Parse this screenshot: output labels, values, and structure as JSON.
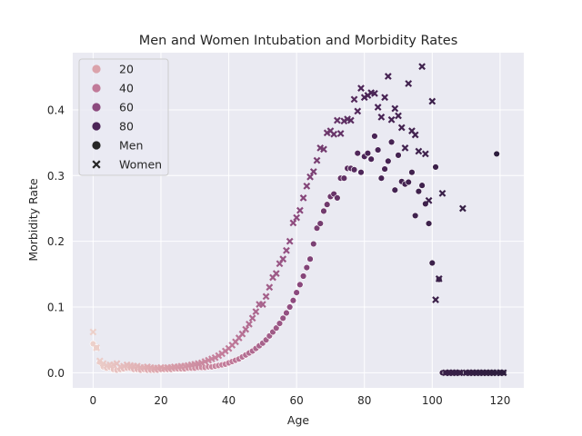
{
  "chart_data": {
    "type": "scatter",
    "title": "Men and Women Intubation and Morbidity Rates",
    "xlabel": "Age",
    "ylabel": "Morbidity Rate",
    "xlim": [
      -6,
      127
    ],
    "ylim": [
      -0.023,
      0.487
    ],
    "xticks": [
      0,
      20,
      40,
      60,
      80,
      100,
      120
    ],
    "yticks": [
      0.0,
      0.1,
      0.2,
      0.3,
      0.4
    ],
    "grid": true,
    "background": "#eaeaf2",
    "legend": {
      "placement": "top-left",
      "hue_entries": [
        {
          "label": "20",
          "color": "#dba3ab"
        },
        {
          "label": "40",
          "color": "#c17a99"
        },
        {
          "label": "60",
          "color": "#8c4a7e"
        },
        {
          "label": "80",
          "color": "#4b2457"
        }
      ],
      "style_entries": [
        {
          "label": "Men",
          "marker": "circle"
        },
        {
          "label": "Women",
          "marker": "x"
        }
      ]
    },
    "series": [
      {
        "style": "Men",
        "marker": "circle",
        "x": [
          0,
          1,
          2,
          3,
          4,
          5,
          6,
          7,
          8,
          9,
          10,
          11,
          12,
          13,
          14,
          15,
          16,
          17,
          18,
          19,
          20,
          21,
          22,
          23,
          24,
          25,
          26,
          27,
          28,
          29,
          30,
          31,
          32,
          33,
          34,
          35,
          36,
          37,
          38,
          39,
          40,
          41,
          42,
          43,
          44,
          45,
          46,
          47,
          48,
          49,
          50,
          51,
          52,
          53,
          54,
          55,
          56,
          57,
          58,
          59,
          60,
          61,
          62,
          63,
          64,
          65,
          66,
          67,
          68,
          69,
          70,
          71,
          72,
          73,
          74,
          75,
          76,
          77,
          78,
          79,
          80,
          81,
          82,
          83,
          84,
          85,
          86,
          87,
          88,
          89,
          90,
          91,
          92,
          93,
          94,
          95,
          96,
          97,
          98,
          99,
          100,
          101,
          102,
          103,
          104,
          105,
          106,
          107,
          108,
          109,
          110,
          111,
          112,
          113,
          114,
          115,
          116,
          117,
          118,
          119,
          120,
          121
        ],
        "y": [
          0.044,
          0.038,
          0.016,
          0.009,
          0.007,
          0.008,
          0.005,
          0.004,
          0.005,
          0.006,
          0.007,
          0.007,
          0.005,
          0.005,
          0.004,
          0.005,
          0.004,
          0.004,
          0.004,
          0.004,
          0.005,
          0.005,
          0.005,
          0.005,
          0.006,
          0.006,
          0.006,
          0.006,
          0.007,
          0.007,
          0.007,
          0.008,
          0.008,
          0.008,
          0.009,
          0.009,
          0.01,
          0.011,
          0.012,
          0.013,
          0.015,
          0.017,
          0.019,
          0.021,
          0.024,
          0.027,
          0.03,
          0.033,
          0.037,
          0.041,
          0.045,
          0.05,
          0.056,
          0.062,
          0.068,
          0.075,
          0.083,
          0.091,
          0.1,
          0.11,
          0.122,
          0.134,
          0.147,
          0.16,
          0.173,
          0.196,
          0.22,
          0.227,
          0.246,
          0.256,
          0.268,
          0.272,
          0.266,
          0.296,
          0.296,
          0.311,
          0.311,
          0.309,
          0.334,
          0.305,
          0.329,
          0.334,
          0.325,
          0.36,
          0.339,
          0.296,
          0.31,
          0.322,
          0.351,
          0.278,
          0.331,
          0.291,
          0.287,
          0.29,
          0.305,
          0.239,
          0.276,
          0.285,
          0.257,
          0.227,
          0.167,
          0.313,
          0.142,
          0.0,
          0.0,
          0.0,
          0.0,
          0.0,
          0.0,
          0.0,
          0.0,
          0.0,
          0.0,
          0.0,
          0.0,
          0.0,
          0.0,
          0.0,
          0.0,
          0.333,
          0.0,
          0.0
        ],
        "hue": [
          0,
          1,
          2,
          3,
          4,
          5,
          6,
          7,
          8,
          9,
          10,
          11,
          12,
          13,
          14,
          15,
          16,
          17,
          18,
          19,
          20,
          21,
          22,
          23,
          24,
          25,
          26,
          27,
          28,
          29,
          30,
          31,
          32,
          33,
          34,
          35,
          36,
          37,
          38,
          39,
          40,
          41,
          42,
          43,
          44,
          45,
          46,
          47,
          48,
          49,
          50,
          51,
          52,
          53,
          54,
          55,
          56,
          57,
          58,
          59,
          60,
          61,
          62,
          63,
          64,
          65,
          66,
          67,
          68,
          69,
          70,
          71,
          72,
          73,
          74,
          75,
          76,
          77,
          78,
          79,
          80,
          81,
          82,
          83,
          84,
          85,
          86,
          87,
          88,
          89,
          90,
          91,
          92,
          93,
          94,
          95,
          96,
          97,
          98,
          99,
          100,
          101,
          102,
          103,
          104,
          105,
          106,
          107,
          108,
          109,
          110,
          111,
          112,
          113,
          114,
          115,
          116,
          117,
          118,
          119,
          120,
          121
        ]
      },
      {
        "style": "Women",
        "marker": "x",
        "x": [
          0,
          1,
          2,
          3,
          4,
          5,
          6,
          7,
          8,
          9,
          10,
          11,
          12,
          13,
          14,
          15,
          16,
          17,
          18,
          19,
          20,
          21,
          22,
          23,
          24,
          25,
          26,
          27,
          28,
          29,
          30,
          31,
          32,
          33,
          34,
          35,
          36,
          37,
          38,
          39,
          40,
          41,
          42,
          43,
          44,
          45,
          46,
          47,
          48,
          49,
          50,
          51,
          52,
          53,
          54,
          55,
          56,
          57,
          58,
          59,
          60,
          61,
          62,
          63,
          64,
          65,
          66,
          67,
          68,
          69,
          70,
          71,
          72,
          73,
          74,
          75,
          76,
          77,
          78,
          79,
          80,
          81,
          82,
          83,
          84,
          85,
          86,
          87,
          88,
          89,
          90,
          91,
          92,
          93,
          94,
          95,
          96,
          97,
          98,
          99,
          100,
          101,
          102,
          103,
          104,
          105,
          106,
          107,
          108,
          109,
          110,
          111,
          112,
          113,
          114,
          115,
          116,
          117,
          118,
          119,
          120,
          121
        ],
        "y": [
          0.062,
          0.038,
          0.018,
          0.014,
          0.011,
          0.012,
          0.012,
          0.014,
          0.009,
          0.01,
          0.012,
          0.011,
          0.01,
          0.01,
          0.008,
          0.008,
          0.009,
          0.008,
          0.007,
          0.007,
          0.008,
          0.007,
          0.008,
          0.008,
          0.009,
          0.009,
          0.01,
          0.01,
          0.011,
          0.012,
          0.013,
          0.014,
          0.015,
          0.017,
          0.019,
          0.021,
          0.023,
          0.026,
          0.029,
          0.033,
          0.037,
          0.042,
          0.047,
          0.053,
          0.059,
          0.066,
          0.074,
          0.083,
          0.093,
          0.104,
          0.104,
          0.116,
          0.13,
          0.145,
          0.151,
          0.166,
          0.173,
          0.186,
          0.2,
          0.228,
          0.236,
          0.247,
          0.266,
          0.284,
          0.298,
          0.306,
          0.323,
          0.342,
          0.34,
          0.365,
          0.368,
          0.363,
          0.384,
          0.364,
          0.383,
          0.386,
          0.384,
          0.416,
          0.398,
          0.433,
          0.419,
          0.422,
          0.426,
          0.425,
          0.404,
          0.389,
          0.419,
          0.451,
          0.385,
          0.402,
          0.391,
          0.373,
          0.342,
          0.44,
          0.368,
          0.362,
          0.337,
          0.466,
          0.333,
          0.262,
          0.413,
          0.111,
          0.143,
          0.273,
          0.0,
          0.0,
          0.0,
          0.0,
          0.0,
          0.25,
          0.0,
          0.0,
          0.0,
          0.0,
          0.0,
          0.0,
          0.0,
          0.0,
          0.0,
          0.0,
          0.0,
          0.0
        ],
        "hue": [
          0,
          1,
          2,
          3,
          4,
          5,
          6,
          7,
          8,
          9,
          10,
          11,
          12,
          13,
          14,
          15,
          16,
          17,
          18,
          19,
          20,
          21,
          22,
          23,
          24,
          25,
          26,
          27,
          28,
          29,
          30,
          31,
          32,
          33,
          34,
          35,
          36,
          37,
          38,
          39,
          40,
          41,
          42,
          43,
          44,
          45,
          46,
          47,
          48,
          49,
          50,
          51,
          52,
          53,
          54,
          55,
          56,
          57,
          58,
          59,
          60,
          61,
          62,
          63,
          64,
          65,
          66,
          67,
          68,
          69,
          70,
          71,
          72,
          73,
          74,
          75,
          76,
          77,
          78,
          79,
          80,
          81,
          82,
          83,
          84,
          85,
          86,
          87,
          88,
          89,
          90,
          91,
          92,
          93,
          94,
          95,
          96,
          97,
          98,
          99,
          100,
          101,
          102,
          103,
          104,
          105,
          106,
          107,
          108,
          109,
          110,
          111,
          112,
          113,
          114,
          115,
          116,
          117,
          118,
          119,
          120,
          121
        ]
      }
    ]
  }
}
